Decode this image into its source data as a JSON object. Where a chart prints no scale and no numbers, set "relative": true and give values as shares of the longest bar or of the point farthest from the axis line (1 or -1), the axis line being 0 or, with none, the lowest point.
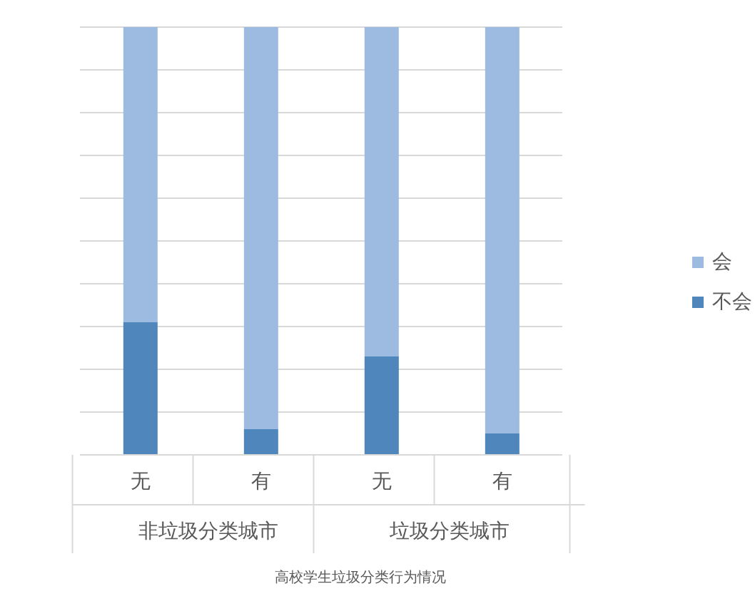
{
  "chart_data": {
    "type": "bar",
    "stacked": true,
    "relative": true,
    "title": "高校学生垃圾分类行为情况",
    "categories": [
      "无",
      "有",
      "无",
      "有"
    ],
    "annotations": [
      "非垃圾分类城市",
      "垃圾分类城市"
    ],
    "series": [
      {
        "name": "不会",
        "color": "#4f86bc",
        "values": [
          0.31,
          0.06,
          0.23,
          0.05
        ]
      },
      {
        "name": "会",
        "color": "#9dbbe0",
        "values": [
          0.69,
          0.94,
          0.77,
          0.95
        ]
      }
    ],
    "grid": "y",
    "legend": "right"
  }
}
